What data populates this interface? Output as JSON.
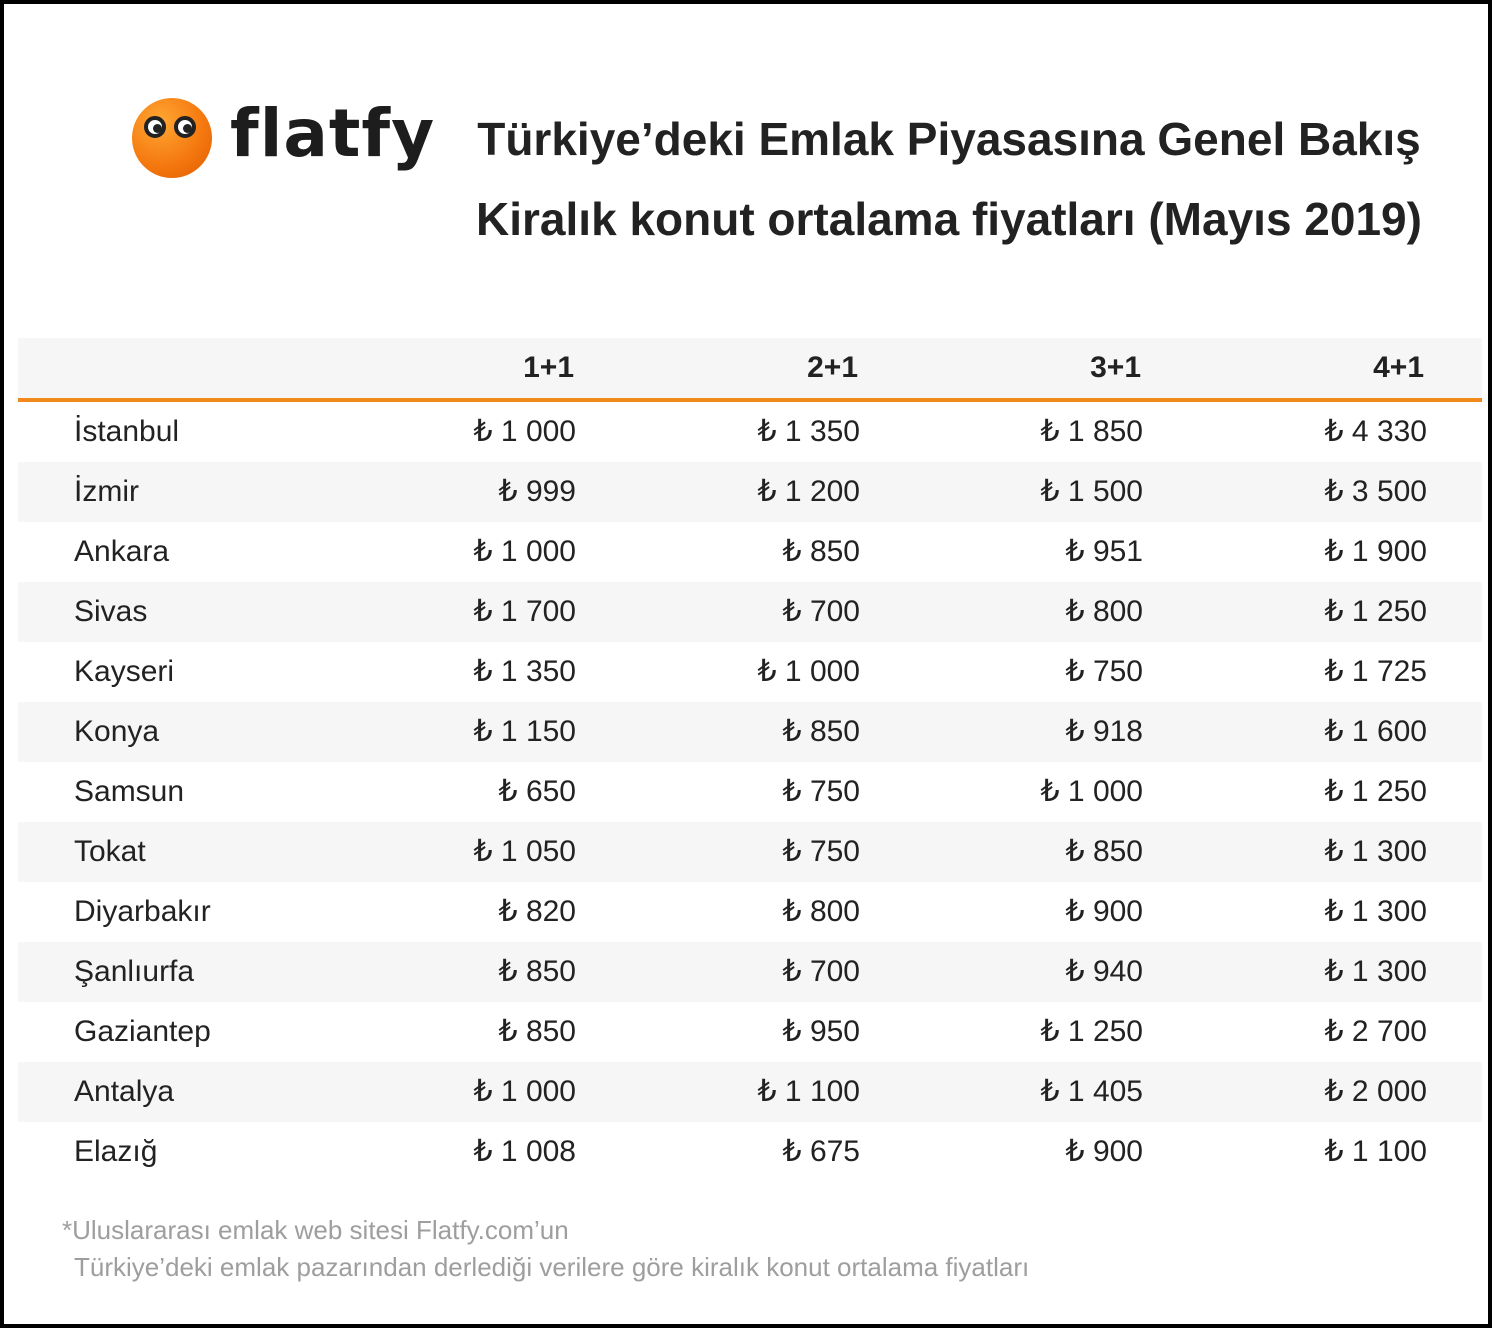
{
  "brand": {
    "name": "flatfy",
    "accent": "#f18a1b",
    "logo_color": "#f57a10"
  },
  "title": "Türkiye’deki Emlak Piyasasına Genel Bakış",
  "subtitle": "Kiralık konut ortalama fiyatları (Mayıs 2019)",
  "chart_data": {
    "type": "table",
    "columns": [
      "",
      "1+1",
      "2+1",
      "3+1",
      "4+1"
    ],
    "currency": "₺",
    "rows": [
      {
        "city": "İstanbul",
        "values": [
          "₺ 1 000",
          "₺ 1 350",
          "₺ 1 850",
          "₺ 4 330"
        ]
      },
      {
        "city": "İzmir",
        "values": [
          "₺ 999",
          "₺ 1 200",
          "₺ 1 500",
          "₺ 3 500"
        ]
      },
      {
        "city": "Ankara",
        "values": [
          "₺ 1 000",
          "₺ 850",
          "₺ 951",
          "₺ 1 900"
        ]
      },
      {
        "city": "Sivas",
        "values": [
          "₺ 1 700",
          "₺ 700",
          "₺ 800",
          "₺ 1 250"
        ]
      },
      {
        "city": "Kayseri",
        "values": [
          "₺ 1 350",
          "₺ 1 000",
          "₺ 750",
          "₺ 1 725"
        ]
      },
      {
        "city": "Konya",
        "values": [
          "₺ 1 150",
          "₺ 850",
          "₺ 918",
          "₺ 1 600"
        ]
      },
      {
        "city": "Samsun",
        "values": [
          "₺ 650",
          "₺ 750",
          "₺ 1 000",
          "₺ 1 250"
        ]
      },
      {
        "city": "Tokat",
        "values": [
          "₺ 1 050",
          "₺ 750",
          "₺ 850",
          "₺ 1 300"
        ]
      },
      {
        "city": "Diyarbakır",
        "values": [
          "₺ 820",
          "₺ 800",
          "₺ 900",
          "₺ 1 300"
        ]
      },
      {
        "city": "Şanlıurfa",
        "values": [
          "₺ 850",
          "₺ 700",
          "₺ 940",
          "₺ 1 300"
        ]
      },
      {
        "city": "Gaziantep",
        "values": [
          "₺ 850",
          "₺ 950",
          "₺ 1 250",
          "₺ 2 700"
        ]
      },
      {
        "city": "Antalya",
        "values": [
          "₺ 1 000",
          "₺ 1 100",
          "₺ 1 405",
          "₺ 2 000"
        ]
      },
      {
        "city": "Elazığ",
        "values": [
          "₺ 1 008",
          "₺ 675",
          "₺ 900",
          "₺ 1 100"
        ]
      }
    ]
  },
  "footnote": {
    "line1": "*Uluslararası emlak web sitesi Flatfy.com’un",
    "line2": "Türkiye’deki emlak pazarından derlediği verilere göre kiralık konut ortalama fiyatları"
  }
}
